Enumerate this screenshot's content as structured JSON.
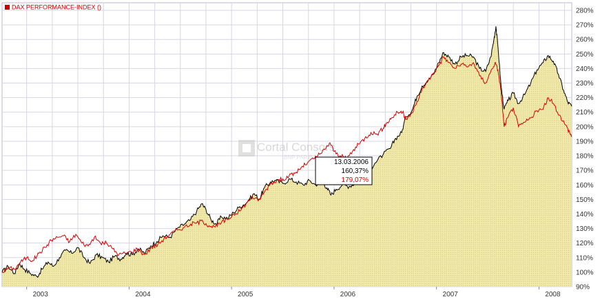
{
  "legend": {
    "label": "DAX PERFORMANCE-INDEX ()",
    "color": "#cc0000"
  },
  "watermark": {
    "line1": "Cortal Consors",
    "line2": "BNP PARIBAS"
  },
  "tooltip": {
    "date": "13.03.2006",
    "value_black": "160,37%",
    "value_red": "179,07%"
  },
  "colors": {
    "area_fill": "#efe7a8",
    "area_line": "#000000",
    "compare_line": "#d40000",
    "grid": "#d6d6e4",
    "axis_text": "#333333"
  },
  "chart_data": {
    "type": "line",
    "title": "",
    "xlabel": "",
    "ylabel": "",
    "ylim": [
      90,
      280
    ],
    "ytick_step": 10,
    "ytick_unit": "%",
    "grid": true,
    "legend_position": "top-left",
    "x_ticks": [
      {
        "label": "2003",
        "t": 2003.0
      },
      {
        "label": "2004",
        "t": 2004.0
      },
      {
        "label": "2005",
        "t": 2005.0
      },
      {
        "label": "2006",
        "t": 2006.0
      },
      {
        "label": "2007",
        "t": 2007.0
      },
      {
        "label": "2008",
        "t": 2008.0
      }
    ],
    "xlim": [
      2002.76,
      2008.32
    ],
    "series": [
      {
        "style": "area",
        "color": "#000000",
        "points": [
          [
            2002.76,
            100
          ],
          [
            2002.82,
            104
          ],
          [
            2002.88,
            99
          ],
          [
            2002.93,
            106
          ],
          [
            2002.98,
            102
          ],
          [
            2003.04,
            99
          ],
          [
            2003.1,
            97
          ],
          [
            2003.15,
            102
          ],
          [
            2003.21,
            107
          ],
          [
            2003.26,
            104
          ],
          [
            2003.32,
            110
          ],
          [
            2003.38,
            115
          ],
          [
            2003.44,
            113
          ],
          [
            2003.5,
            117
          ],
          [
            2003.56,
            110
          ],
          [
            2003.62,
            106
          ],
          [
            2003.68,
            112
          ],
          [
            2003.74,
            110
          ],
          [
            2003.8,
            107
          ],
          [
            2003.86,
            111
          ],
          [
            2003.92,
            109
          ],
          [
            2003.97,
            113
          ],
          [
            2004.03,
            112
          ],
          [
            2004.09,
            116
          ],
          [
            2004.15,
            113
          ],
          [
            2004.21,
            118
          ],
          [
            2004.27,
            121
          ],
          [
            2004.33,
            125
          ],
          [
            2004.4,
            124
          ],
          [
            2004.47,
            130
          ],
          [
            2004.54,
            133
          ],
          [
            2004.6,
            136
          ],
          [
            2004.66,
            142
          ],
          [
            2004.71,
            147
          ],
          [
            2004.75,
            143
          ],
          [
            2004.8,
            136
          ],
          [
            2004.85,
            133
          ],
          [
            2004.9,
            138
          ],
          [
            2004.96,
            137
          ],
          [
            2005.02,
            141
          ],
          [
            2005.08,
            145
          ],
          [
            2005.15,
            148
          ],
          [
            2005.22,
            154
          ],
          [
            2005.27,
            150
          ],
          [
            2005.32,
            158
          ],
          [
            2005.38,
            162
          ],
          [
            2005.43,
            163
          ],
          [
            2005.5,
            161
          ],
          [
            2005.57,
            164
          ],
          [
            2005.63,
            162
          ],
          [
            2005.7,
            160
          ],
          [
            2005.76,
            163
          ],
          [
            2005.82,
            160
          ],
          [
            2005.88,
            163
          ],
          [
            2005.93,
            158
          ],
          [
            2005.97,
            153
          ],
          [
            2006.02,
            157
          ],
          [
            2006.08,
            160
          ],
          [
            2006.15,
            159
          ],
          [
            2006.2,
            161
          ],
          [
            2006.26,
            165
          ],
          [
            2006.32,
            168
          ],
          [
            2006.4,
            175
          ],
          [
            2006.48,
            181
          ],
          [
            2006.55,
            185
          ],
          [
            2006.6,
            192
          ],
          [
            2006.66,
            196
          ],
          [
            2006.7,
            207
          ],
          [
            2006.76,
            211
          ],
          [
            2006.81,
            221
          ],
          [
            2006.86,
            228
          ],
          [
            2006.92,
            232
          ],
          [
            2006.97,
            236
          ],
          [
            2007.02,
            244
          ],
          [
            2007.07,
            251
          ],
          [
            2007.12,
            248
          ],
          [
            2007.18,
            243
          ],
          [
            2007.24,
            248
          ],
          [
            2007.3,
            249
          ],
          [
            2007.36,
            248
          ],
          [
            2007.42,
            240
          ],
          [
            2007.48,
            238
          ],
          [
            2007.53,
            248
          ],
          [
            2007.56,
            260
          ],
          [
            2007.58,
            269
          ],
          [
            2007.6,
            255
          ],
          [
            2007.63,
            228
          ],
          [
            2007.66,
            212
          ],
          [
            2007.7,
            218
          ],
          [
            2007.75,
            223
          ],
          [
            2007.8,
            216
          ],
          [
            2007.86,
            222
          ],
          [
            2007.92,
            230
          ],
          [
            2007.98,
            239
          ],
          [
            2008.04,
            244
          ],
          [
            2008.09,
            249
          ],
          [
            2008.14,
            245
          ],
          [
            2008.19,
            236
          ],
          [
            2008.24,
            225
          ],
          [
            2008.28,
            217
          ],
          [
            2008.32,
            214
          ]
        ]
      },
      {
        "style": "line",
        "name": "DAX PERFORMANCE-INDEX ()",
        "color": "#d40000",
        "points": [
          [
            2002.76,
            100
          ],
          [
            2002.82,
            103
          ],
          [
            2002.88,
            102
          ],
          [
            2002.94,
            107
          ],
          [
            2003.0,
            110
          ],
          [
            2003.06,
            108
          ],
          [
            2003.12,
            113
          ],
          [
            2003.18,
            117
          ],
          [
            2003.24,
            122
          ],
          [
            2003.3,
            124
          ],
          [
            2003.36,
            125
          ],
          [
            2003.42,
            121
          ],
          [
            2003.48,
            126
          ],
          [
            2003.54,
            120
          ],
          [
            2003.6,
            118
          ],
          [
            2003.66,
            124
          ],
          [
            2003.72,
            120
          ],
          [
            2003.78,
            120
          ],
          [
            2003.84,
            116
          ],
          [
            2003.9,
            112
          ],
          [
            2003.96,
            113
          ],
          [
            2004.02,
            114
          ],
          [
            2004.08,
            116
          ],
          [
            2004.15,
            112
          ],
          [
            2004.22,
            117
          ],
          [
            2004.28,
            119
          ],
          [
            2004.34,
            123
          ],
          [
            2004.4,
            126
          ],
          [
            2004.47,
            129
          ],
          [
            2004.54,
            131
          ],
          [
            2004.6,
            133
          ],
          [
            2004.66,
            134
          ],
          [
            2004.72,
            135
          ],
          [
            2004.78,
            132
          ],
          [
            2004.84,
            131
          ],
          [
            2004.9,
            134
          ],
          [
            2004.96,
            136
          ],
          [
            2005.02,
            140
          ],
          [
            2005.08,
            142
          ],
          [
            2005.14,
            147
          ],
          [
            2005.2,
            152
          ],
          [
            2005.26,
            149
          ],
          [
            2005.32,
            155
          ],
          [
            2005.38,
            161
          ],
          [
            2005.44,
            163
          ],
          [
            2005.5,
            164
          ],
          [
            2005.56,
            166
          ],
          [
            2005.62,
            168
          ],
          [
            2005.68,
            172
          ],
          [
            2005.74,
            175
          ],
          [
            2005.8,
            178
          ],
          [
            2005.86,
            181
          ],
          [
            2005.92,
            185
          ],
          [
            2005.96,
            189
          ],
          [
            2006.0,
            183
          ],
          [
            2006.06,
            180
          ],
          [
            2006.12,
            178
          ],
          [
            2006.18,
            183
          ],
          [
            2006.24,
            188
          ],
          [
            2006.3,
            192
          ],
          [
            2006.36,
            196
          ],
          [
            2006.42,
            195
          ],
          [
            2006.48,
            199
          ],
          [
            2006.52,
            203
          ],
          [
            2006.56,
            206
          ],
          [
            2006.62,
            210
          ],
          [
            2006.67,
            210
          ],
          [
            2006.7,
            205
          ],
          [
            2006.74,
            207
          ],
          [
            2006.8,
            215
          ],
          [
            2006.86,
            226
          ],
          [
            2006.92,
            232
          ],
          [
            2006.97,
            237
          ],
          [
            2007.02,
            242
          ],
          [
            2007.07,
            248
          ],
          [
            2007.12,
            244
          ],
          [
            2007.18,
            240
          ],
          [
            2007.24,
            243
          ],
          [
            2007.3,
            241
          ],
          [
            2007.36,
            244
          ],
          [
            2007.42,
            235
          ],
          [
            2007.48,
            230
          ],
          [
            2007.53,
            238
          ],
          [
            2007.57,
            244
          ],
          [
            2007.6,
            239
          ],
          [
            2007.63,
            224
          ],
          [
            2007.66,
            200
          ],
          [
            2007.7,
            207
          ],
          [
            2007.75,
            213
          ],
          [
            2007.8,
            200
          ],
          [
            2007.86,
            203
          ],
          [
            2007.92,
            206
          ],
          [
            2007.98,
            211
          ],
          [
            2008.04,
            212
          ],
          [
            2008.09,
            220
          ],
          [
            2008.14,
            216
          ],
          [
            2008.2,
            208
          ],
          [
            2008.26,
            201
          ],
          [
            2008.3,
            196
          ],
          [
            2008.32,
            193
          ]
        ]
      }
    ]
  }
}
